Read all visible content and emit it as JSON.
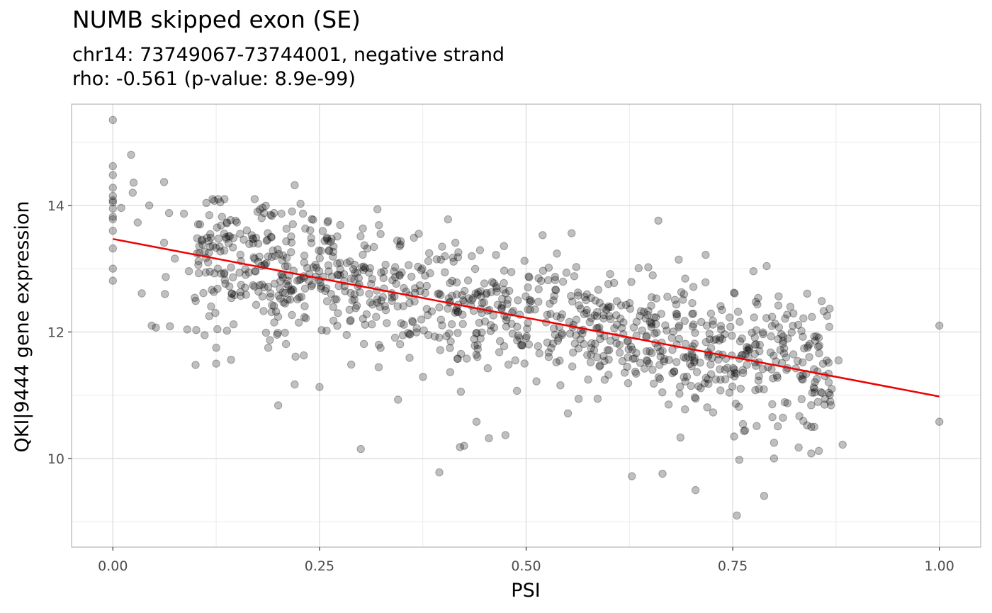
{
  "chart_data": {
    "type": "scatter",
    "title": "NUMB skipped exon (SE)",
    "subtitle": [
      "chr14: 73749067-73744001, negative strand",
      "rho: -0.561 (p-value: 8.9e-99)"
    ],
    "xlabel": "PSI",
    "ylabel": "QKI|9444 gene expression",
    "xlim": [
      -0.05,
      1.05
    ],
    "ylim": [
      8.6,
      15.6
    ],
    "xticks": [
      0,
      0.25,
      0.5,
      0.75,
      1
    ],
    "xtick_labels": [
      "0.00",
      "0.25",
      "0.50",
      "0.75",
      "1.00"
    ],
    "yticks": [
      10,
      12,
      14
    ],
    "ytick_labels": [
      "10",
      "12",
      "14"
    ],
    "grid": true,
    "legend": "none",
    "trend_line": {
      "x": [
        0,
        1
      ],
      "y": [
        13.47,
        10.98
      ],
      "color": "#ee0000"
    },
    "point_color": "#000000",
    "point_alpha": 0.25,
    "highlighted_points": [
      [
        0,
        15.35
      ],
      [
        0,
        14.62
      ],
      [
        0,
        14.48
      ],
      [
        0,
        14.28
      ],
      [
        0,
        14.15
      ],
      [
        0,
        14.08
      ],
      [
        0,
        14.05
      ],
      [
        0,
        13.95
      ],
      [
        0,
        13.82
      ],
      [
        0,
        13.78
      ],
      [
        0,
        13.6
      ],
      [
        0,
        13.32
      ],
      [
        0,
        13.0
      ],
      [
        0,
        12.81
      ],
      [
        0.01,
        13.96
      ],
      [
        0.022,
        14.8
      ],
      [
        0.024,
        14.2
      ],
      [
        0.025,
        14.36
      ],
      [
        0.03,
        13.73
      ],
      [
        0.035,
        12.61
      ],
      [
        0.044,
        14.0
      ],
      [
        0.047,
        12.1
      ],
      [
        0.052,
        12.07
      ],
      [
        0.062,
        14.37
      ],
      [
        0.062,
        13.41
      ],
      [
        0.063,
        12.6
      ],
      [
        0.064,
        12.87
      ],
      [
        0.068,
        13.88
      ],
      [
        0.069,
        12.09
      ],
      [
        0.075,
        13.16
      ],
      [
        0.086,
        13.87
      ],
      [
        0.09,
        12.04
      ],
      [
        0.092,
        12.96
      ],
      [
        0.099,
        12.54
      ],
      [
        0.1,
        11.48
      ],
      [
        0.102,
        13.48
      ],
      [
        0.103,
        13.7
      ],
      [
        0.108,
        13.46
      ],
      [
        0.111,
        11.95
      ],
      [
        0.114,
        13.49
      ],
      [
        0.124,
        12.3
      ],
      [
        0.125,
        11.5
      ],
      [
        0.125,
        11.75
      ],
      [
        0.13,
        14.05
      ],
      [
        0.132,
        13.82
      ],
      [
        0.138,
        13.73
      ],
      [
        0.14,
        13.4
      ],
      [
        0.143,
        11.56
      ],
      [
        0.146,
        12.12
      ],
      [
        0.15,
        13.73
      ],
      [
        0.154,
        13.55
      ],
      [
        0.16,
        12.7
      ],
      [
        0.165,
        13.39
      ],
      [
        0.172,
        12.96
      ],
      [
        0.175,
        13.9
      ],
      [
        0.18,
        13.8
      ],
      [
        0.183,
        13.88
      ],
      [
        0.186,
        13.44
      ],
      [
        0.188,
        11.75
      ],
      [
        0.19,
        11.87
      ],
      [
        0.195,
        13.88
      ],
      [
        0.2,
        10.84
      ],
      [
        0.2,
        12.24
      ],
      [
        0.205,
        13.13
      ],
      [
        0.21,
        13.63
      ],
      [
        0.22,
        14.32
      ],
      [
        0.22,
        11.17
      ],
      [
        0.221,
        11.61
      ],
      [
        0.23,
        13.87
      ],
      [
        0.231,
        11.63
      ],
      [
        0.25,
        11.13
      ],
      [
        0.259,
        13.47
      ],
      [
        0.267,
        13.35
      ],
      [
        0.275,
        13.69
      ],
      [
        0.3,
        10.15
      ],
      [
        0.345,
        10.93
      ],
      [
        0.37,
        13.55
      ],
      [
        0.395,
        9.78
      ],
      [
        0.42,
        10.18
      ],
      [
        0.425,
        10.2
      ],
      [
        0.44,
        10.58
      ],
      [
        0.455,
        10.32
      ],
      [
        0.475,
        10.37
      ],
      [
        0.52,
        13.53
      ],
      [
        0.555,
        13.56
      ],
      [
        0.628,
        9.72
      ],
      [
        0.66,
        13.76
      ],
      [
        0.665,
        9.76
      ],
      [
        0.705,
        9.5
      ],
      [
        0.755,
        9.1
      ],
      [
        0.775,
        12.96
      ],
      [
        0.788,
        9.41
      ],
      [
        0.8,
        10.0
      ],
      [
        0.8,
        10.25
      ],
      [
        0.845,
        10.08
      ],
      [
        0.845,
        10.5
      ],
      [
        0.86,
        12.33
      ],
      [
        0.878,
        11.55
      ],
      [
        0.883,
        10.22
      ],
      [
        1.0,
        12.1
      ],
      [
        1.0,
        10.58
      ]
    ],
    "cloud": {
      "n_points": 1000,
      "x_range": [
        0.1,
        0.87
      ],
      "y_center_at_x0": 13.47,
      "slope": -2.49,
      "spread_sd": 0.52
    }
  }
}
